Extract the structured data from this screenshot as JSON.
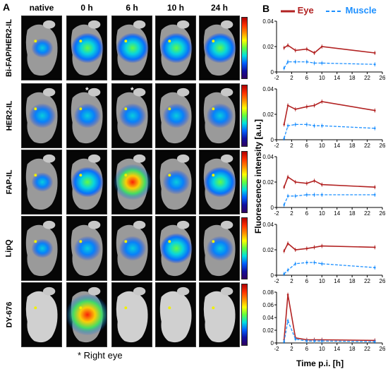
{
  "panels": {
    "a": "A",
    "b": "B"
  },
  "columns": [
    "native",
    "0 h",
    "6 h",
    "10 h",
    "24 h"
  ],
  "rows": [
    "Bi-FAP/HER2-IL",
    "HER2-IL",
    "FAP-IL",
    "LipQ",
    "DY-676"
  ],
  "asterisk": "*",
  "footnote": "* Right eye",
  "legend": {
    "eye": {
      "label": "Eye",
      "color": "#b22222"
    },
    "muscle": {
      "label": "Muscle",
      "color": "#1e90ff"
    }
  },
  "ylabel": "Fluorescence intensity [a.u.]",
  "xlabel": "Time p.i. [h]",
  "chart_data": [
    {
      "type": "line",
      "xlim": [
        -2,
        26
      ],
      "ylim": [
        0,
        0.04
      ],
      "yticks": [
        0,
        0.02,
        0.04
      ],
      "xticks": [
        -2,
        2,
        6,
        10,
        14,
        18,
        22,
        26
      ],
      "series": [
        {
          "name": "Eye",
          "x": [
            0,
            1,
            3,
            6,
            8,
            10,
            24
          ],
          "y": [
            0.019,
            0.021,
            0.017,
            0.018,
            0.015,
            0.02,
            0.015
          ]
        },
        {
          "name": "Muscle",
          "x": [
            0,
            1,
            3,
            6,
            8,
            10,
            24
          ],
          "y": [
            0.003,
            0.008,
            0.008,
            0.008,
            0.007,
            0.007,
            0.006
          ]
        }
      ]
    },
    {
      "type": "line",
      "xlim": [
        -2,
        26
      ],
      "ylim": [
        0,
        0.04
      ],
      "yticks": [
        0,
        0.02,
        0.04
      ],
      "xticks": [
        -2,
        2,
        6,
        10,
        14,
        18,
        22,
        26
      ],
      "series": [
        {
          "name": "Eye",
          "x": [
            0,
            1,
            3,
            6,
            8,
            10,
            24
          ],
          "y": [
            0.012,
            0.027,
            0.024,
            0.026,
            0.027,
            0.03,
            0.023
          ]
        },
        {
          "name": "Muscle",
          "x": [
            0,
            1,
            3,
            6,
            8,
            10,
            24
          ],
          "y": [
            0.001,
            0.011,
            0.012,
            0.012,
            0.011,
            0.011,
            0.009
          ]
        }
      ]
    },
    {
      "type": "line",
      "xlim": [
        -2,
        26
      ],
      "ylim": [
        0,
        0.04
      ],
      "yticks": [
        0,
        0.02,
        0.04
      ],
      "xticks": [
        -2,
        2,
        6,
        10,
        14,
        18,
        22,
        26
      ],
      "series": [
        {
          "name": "Eye",
          "x": [
            0,
            1,
            3,
            6,
            8,
            10,
            24
          ],
          "y": [
            0.016,
            0.024,
            0.02,
            0.019,
            0.021,
            0.018,
            0.016
          ]
        },
        {
          "name": "Muscle",
          "x": [
            0,
            1,
            3,
            6,
            8,
            10,
            24
          ],
          "y": [
            0.002,
            0.009,
            0.009,
            0.01,
            0.01,
            0.01,
            0.01
          ]
        }
      ]
    },
    {
      "type": "line",
      "xlim": [
        -2,
        26
      ],
      "ylim": [
        0,
        0.04
      ],
      "yticks": [
        0,
        0.02,
        0.04
      ],
      "xticks": [
        -2,
        2,
        6,
        10,
        14,
        18,
        22,
        26
      ],
      "series": [
        {
          "name": "Eye",
          "x": [
            0,
            1,
            3,
            6,
            8,
            10,
            24
          ],
          "y": [
            0.019,
            0.025,
            0.02,
            0.021,
            0.022,
            0.023,
            0.022
          ]
        },
        {
          "name": "Muscle",
          "x": [
            0,
            1,
            3,
            6,
            8,
            10,
            24
          ],
          "y": [
            0.001,
            0.004,
            0.009,
            0.01,
            0.01,
            0.009,
            0.006
          ]
        }
      ]
    },
    {
      "type": "line",
      "xlim": [
        -2,
        26
      ],
      "ylim": [
        0,
        0.08
      ],
      "yticks": [
        0,
        0.02,
        0.04,
        0.06,
        0.08
      ],
      "xticks": [
        -2,
        2,
        6,
        10,
        14,
        18,
        22,
        26
      ],
      "series": [
        {
          "name": "Eye",
          "x": [
            0,
            1,
            3,
            6,
            8,
            10,
            24
          ],
          "y": [
            0.005,
            0.076,
            0.008,
            0.005,
            0.005,
            0.005,
            0.004
          ]
        },
        {
          "name": "Muscle",
          "x": [
            0,
            1,
            3,
            6,
            8,
            10,
            24
          ],
          "y": [
            0.002,
            0.035,
            0.006,
            0.003,
            0.003,
            0.003,
            0.002
          ]
        }
      ]
    }
  ]
}
